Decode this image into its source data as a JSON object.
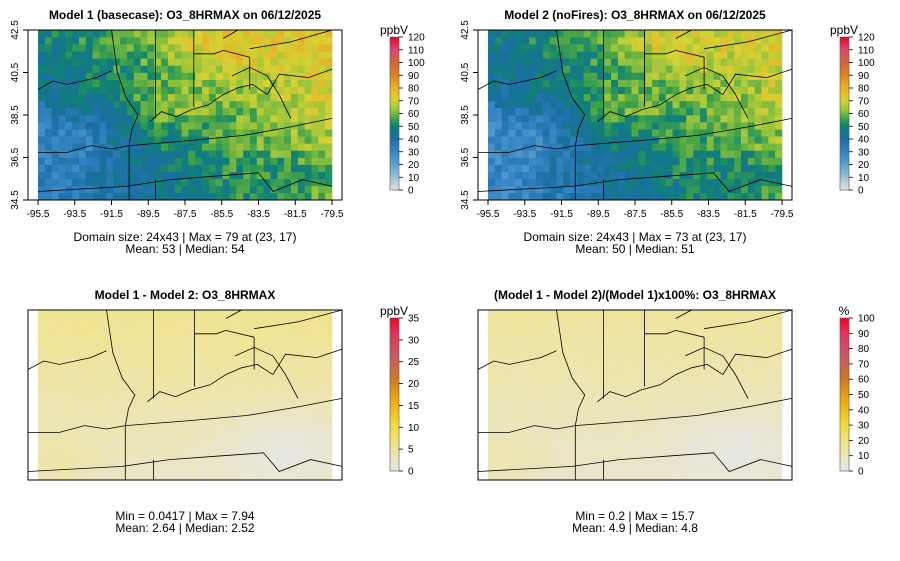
{
  "chart_data": [
    {
      "type": "heatmap",
      "title": "Model 1 (basecase): O3_8HRMAX on 06/12/2025",
      "unit_label": "ppbV",
      "colorbar_ticks": [
        "0",
        "10",
        "20",
        "30",
        "40",
        "50",
        "60",
        "70",
        "80",
        "90",
        "100",
        "110",
        "120"
      ],
      "colorbar_range": [
        0,
        120
      ],
      "x_ticks": [
        "-95.5",
        "-93.5",
        "-91.5",
        "-89.5",
        "-87.5",
        "-85.5",
        "-83.5",
        "-81.5",
        "-79.5"
      ],
      "y_ticks": [
        "34.5",
        "36.5",
        "38.5",
        "40.5",
        "42.5"
      ],
      "xlim": [
        -95.5,
        -79.5
      ],
      "ylim": [
        34.5,
        42.5
      ],
      "grid": [
        24,
        43
      ],
      "stats_line1": "Domain size: 24x43 | Max = 79 at (23, 17)",
      "stats_line2": "Mean: 53 |  Median: 54",
      "mean": 53,
      "median": 54,
      "max": 79
    },
    {
      "type": "heatmap",
      "title": "Model 2 (noFires): O3_8HRMAX on 06/12/2025",
      "unit_label": "ppbV",
      "colorbar_ticks": [
        "0",
        "10",
        "20",
        "30",
        "40",
        "50",
        "60",
        "70",
        "80",
        "90",
        "100",
        "110",
        "120"
      ],
      "colorbar_range": [
        0,
        120
      ],
      "x_ticks": [
        "-95.5",
        "-93.5",
        "-91.5",
        "-89.5",
        "-87.5",
        "-85.5",
        "-83.5",
        "-81.5",
        "-79.5"
      ],
      "y_ticks": [
        "34.5",
        "36.5",
        "38.5",
        "40.5",
        "42.5"
      ],
      "xlim": [
        -95.5,
        -79.5
      ],
      "ylim": [
        34.5,
        42.5
      ],
      "grid": [
        24,
        43
      ],
      "stats_line1": "Domain size: 24x43 | Max = 73 at (23, 17)",
      "stats_line2": "Mean: 50 |  Median: 51",
      "mean": 50,
      "median": 51,
      "max": 73
    },
    {
      "type": "heatmap",
      "title": "Model 1 - Model 2: O3_8HRMAX",
      "unit_label": "ppbV",
      "colorbar_ticks": [
        "0",
        "5",
        "10",
        "15",
        "20",
        "25",
        "30",
        "35"
      ],
      "colorbar_range": [
        0,
        35
      ],
      "stats_line1": "Min = 0.0417 | Max = 7.94",
      "stats_line2": "Mean: 2.64 |  Median: 2.52",
      "min": 0.0417,
      "max": 7.94,
      "mean": 2.64,
      "median": 2.52
    },
    {
      "type": "heatmap",
      "title": "(Model 1 - Model 2)/(Model 1)x100%: O3_8HRMAX",
      "unit_label": "%",
      "colorbar_ticks": [
        "0",
        "10",
        "20",
        "30",
        "40",
        "50",
        "60",
        "70",
        "80",
        "90",
        "100"
      ],
      "colorbar_range": [
        0,
        100
      ],
      "stats_line1": "Min = 0.2 | Max = 15.7",
      "stats_line2": "Mean: 4.9 |  Median: 4.8",
      "min": 0.2,
      "max": 15.7,
      "mean": 4.9,
      "median": 4.8
    }
  ]
}
